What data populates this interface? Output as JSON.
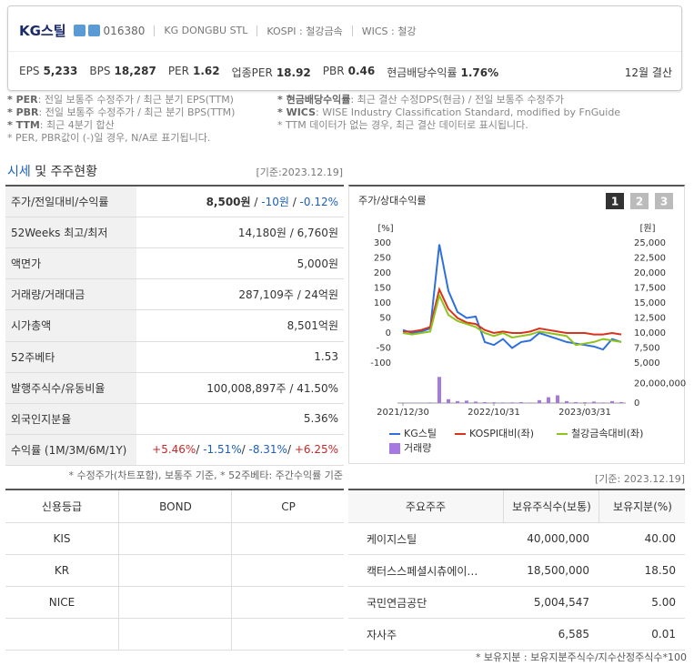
{
  "header": {
    "name": "KG스틸",
    "code": "016380",
    "english_name": "KG DONGBU STL",
    "market": "KOSPI : 철강금속",
    "wics": "WICS : 철강",
    "metrics": [
      {
        "label": "EPS",
        "value": "5,233"
      },
      {
        "label": "BPS",
        "value": "18,287"
      },
      {
        "label": "PER",
        "value": "1.62"
      },
      {
        "label": "업종PER",
        "value": "18.92"
      },
      {
        "label": "PBR",
        "value": "0.46"
      },
      {
        "label": "현금배당수익률",
        "value": "1.76%"
      }
    ],
    "fiscal": "12월 결산"
  },
  "notes": {
    "left": [
      {
        "label": "* PER",
        "text": ": 전일 보통주 수정주가 / 최근 분기 EPS(TTM)"
      },
      {
        "label": "* PBR",
        "text": ": 전일 보통주 수정주가 / 최근 분기 BPS(TTM)"
      },
      {
        "label": "* TTM",
        "text": ": 최근 4분기 합산"
      },
      {
        "text": "* PER, PBR값이 (-)일 경우, N/A로 표기됩니다."
      }
    ],
    "right": [
      {
        "label": "* 현금배당수익률",
        "text": ": 최근 결산 수정DPS(현금) / 전일 보통주 수정주가"
      },
      {
        "label": "* WICS",
        "text": ": WISE Industry Classification Standard, modified by FnGuide"
      },
      {
        "text": "* TTM 데이터가 없는 경우, 최근 결산 데이터로 표시됩니다."
      }
    ]
  },
  "section": {
    "title_a": "시세",
    "title_b": " 및 주주현황",
    "date": "[기준:2023.12.19]"
  },
  "market_table": {
    "rows": [
      {
        "label": "주가/전일대비/수익률",
        "parts": [
          "8,500원",
          "-10원",
          "-0.12%"
        ],
        "separator": " / "
      },
      {
        "label": "52Weeks 최고/최저",
        "parts": [
          "14,180원 / 6,760원"
        ]
      },
      {
        "label": "액면가",
        "parts": [
          "5,000원"
        ]
      },
      {
        "label": "거래량/거래대금",
        "parts": [
          "287,109주 / 24억원"
        ]
      },
      {
        "label": "시가총액",
        "parts": [
          "8,501억원"
        ]
      },
      {
        "label": "52주베타",
        "parts": [
          "1.53"
        ]
      },
      {
        "label": "발행주식수/유동비율",
        "parts": [
          "100,008,897주 / 41.50%"
        ]
      },
      {
        "label": "외국인지분율",
        "parts": [
          "5.36%"
        ]
      },
      {
        "label": "수익률 (1M/3M/6M/1Y)",
        "parts": [
          "+5.46%",
          "-1.51%",
          "-8.31%",
          "+6.25%"
        ],
        "separator": "/ "
      }
    ],
    "footnote": "* 수정주가(차트포함), 보통주 기준, * 52주베타: 주간수익률 기준"
  },
  "chart_data": {
    "type": "line",
    "title": "주가/상대수익률",
    "buttons": [
      "1",
      "2",
      "3"
    ],
    "y_label": "[%]",
    "y2_label": "[원]",
    "categories": [
      "2021/12/30",
      null,
      null,
      null,
      null,
      null,
      null,
      null,
      null,
      null,
      "2022/10/31",
      null,
      null,
      null,
      null,
      null,
      null,
      null,
      null,
      null,
      "2023/03/31",
      null,
      null,
      null,
      null
    ],
    "ylim": [
      -100,
      300
    ],
    "yticks": [
      300,
      250,
      200,
      150,
      100,
      50,
      0,
      -50,
      -100
    ],
    "y2lim": [
      5000,
      25000
    ],
    "y2ticks": [
      {
        "value": 25000,
        "label": "25,000"
      },
      {
        "value": 22500,
        "label": "22,500"
      },
      {
        "value": 20000,
        "label": "20,000"
      },
      {
        "value": 17500,
        "label": "17,500"
      },
      {
        "value": 15000,
        "label": "15,000"
      },
      {
        "value": 12500,
        "label": "12,500"
      },
      {
        "value": 10000,
        "label": "10,000"
      },
      {
        "value": 7500,
        "label": "7,500"
      },
      {
        "value": 5000,
        "label": "5,000"
      }
    ],
    "volume_lim": [
      0,
      31000000
    ],
    "volume_ticks": [
      {
        "value": 20000000,
        "label": "20,000,000"
      },
      0
    ],
    "grid": false,
    "series": [
      {
        "name": "KG스틸",
        "color": "#2f6fdc",
        "axis": "y2",
        "values": [
          10500,
          10000,
          10250,
          10750,
          24750,
          17000,
          13500,
          12500,
          12750,
          8500,
          8000,
          9000,
          7500,
          8500,
          8750,
          10000,
          9500,
          9000,
          8500,
          8250,
          8000,
          7750,
          7250,
          9000,
          8500
        ]
      },
      {
        "name": "KOSPI대비(좌)",
        "color": "#d9321f",
        "values": [
          5,
          5,
          10,
          20,
          145,
          80,
          50,
          35,
          30,
          10,
          0,
          5,
          0,
          0,
          5,
          15,
          10,
          5,
          0,
          0,
          0,
          -5,
          -5,
          0,
          -5
        ]
      },
      {
        "name": "철강금속대비(좌)",
        "color": "#8dc21f",
        "values": [
          0,
          -5,
          0,
          5,
          125,
          60,
          40,
          30,
          20,
          0,
          -10,
          0,
          -15,
          -10,
          -5,
          5,
          0,
          -5,
          -10,
          -40,
          -35,
          -30,
          -20,
          -25,
          -30
        ]
      },
      {
        "name": "거래량",
        "color": "#a779e0",
        "type": "bar",
        "axis": "volume",
        "values": [
          500000,
          300000,
          400000,
          600000,
          27000000,
          4000000,
          2000000,
          2500000,
          1500000,
          1000000,
          800000,
          600000,
          700000,
          1000000,
          500000,
          3000000,
          6000000,
          8000000,
          2000000,
          1000000,
          800000,
          1500000,
          600000,
          2000000,
          1000000
        ]
      }
    ]
  },
  "credit_table": {
    "headers": [
      "신용등급",
      "BOND",
      "CP"
    ],
    "rows": [
      [
        "KIS"
      ],
      [
        "KR"
      ],
      [
        "NICE"
      ],
      []
    ]
  },
  "holders": {
    "date": "[기준: 2023.12.19]",
    "headers": [
      "주요주주",
      "보유주식수(보통)",
      "보유지분(%)"
    ],
    "rows": [
      [
        "케이지스틸",
        "40,000,000",
        "40.00"
      ],
      [
        "캑터스스페셜시츄에이…",
        "18,500,000",
        "18.50"
      ],
      [
        "국민연금공단",
        "5,004,547",
        "5.00"
      ],
      [
        "자사주",
        "6,585",
        "0.01"
      ]
    ],
    "footnote": "* 보유지분 : 보유지분주식수/지수산정주식수*100"
  }
}
